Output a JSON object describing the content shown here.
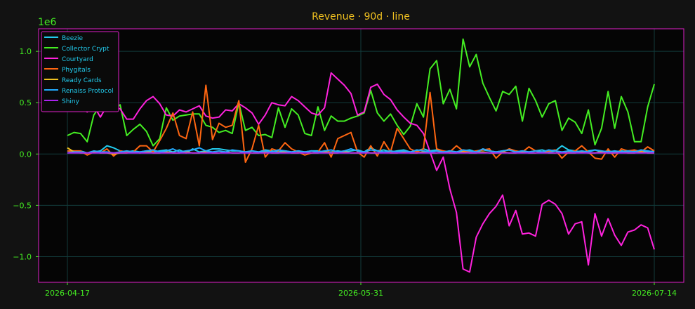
{
  "chart_data": {
    "type": "line",
    "title": "Revenue · 90d · line",
    "offset_label": "1e6",
    "xlabel": "",
    "ylabel": "",
    "x_range": [
      "2026-04-17",
      "2026-07-14"
    ],
    "x_ticks": [
      "2026-04-17",
      "2026-05-31",
      "2026-07-14"
    ],
    "ylim": [
      -1.25,
      1.22
    ],
    "y_ticks": [
      1.0,
      0.5,
      0.0,
      -0.5,
      -1.0
    ],
    "y_tick_labels": [
      "1.0",
      "0.5",
      "0.0",
      "−0.5",
      "−1.0"
    ],
    "grid": true,
    "legend": "top-left",
    "colors": {
      "background": "#121212",
      "plot_background": "#050505",
      "frame": "#e020c8",
      "grid": "#123c3c",
      "tick_text": "#44ee22",
      "title_text": "#f0c020"
    },
    "series": [
      {
        "name": "Beezie",
        "color": "#22ccee",
        "values": [
          0.03,
          0.02,
          0.03,
          0.01,
          0.02,
          0.03,
          0.08,
          0.06,
          0.03,
          0.02,
          0.03,
          0.02,
          0.03,
          0.02,
          0.03,
          0.04,
          0.02,
          0.04,
          0.01,
          0.05,
          0.02,
          0.03,
          0.05,
          0.05,
          0.04,
          0.03,
          0.03,
          0.02,
          0.03,
          0.02,
          0.04,
          0.03,
          0.02,
          0.03,
          0.02,
          0.03,
          0.02,
          0.03,
          0.03,
          0.02,
          0.02,
          0.03,
          0.02,
          0.03,
          0.04,
          0.02,
          0.06,
          0.03,
          0.04,
          0.02,
          0.03,
          0.04,
          0.02,
          0.03,
          0.05,
          0.03,
          0.04,
          0.02,
          0.03,
          0.02,
          0.03,
          0.04,
          0.02,
          0.04,
          0.03,
          0.02,
          0.03,
          0.04,
          0.02,
          0.03,
          0.02,
          0.03,
          0.04,
          0.02,
          0.03,
          0.08,
          0.04,
          0.03,
          0.02,
          0.03,
          0.04,
          0.02,
          0.03,
          0.02,
          0.03,
          0.02,
          0.03,
          0.03,
          0.02,
          0.03
        ]
      },
      {
        "name": "Collector Crypt",
        "color": "#44ee22",
        "values": [
          0.18,
          0.21,
          0.2,
          0.12,
          0.38,
          0.47,
          0.52,
          0.43,
          0.48,
          0.18,
          0.24,
          0.29,
          0.22,
          0.08,
          0.15,
          0.45,
          0.33,
          0.37,
          0.38,
          0.39,
          0.39,
          0.28,
          0.26,
          0.21,
          0.23,
          0.2,
          0.5,
          0.23,
          0.26,
          0.18,
          0.19,
          0.16,
          0.45,
          0.26,
          0.44,
          0.38,
          0.2,
          0.18,
          0.46,
          0.23,
          0.37,
          0.32,
          0.32,
          0.35,
          0.37,
          0.4,
          0.62,
          0.4,
          0.32,
          0.39,
          0.28,
          0.19,
          0.27,
          0.49,
          0.36,
          0.83,
          0.91,
          0.49,
          0.63,
          0.44,
          1.12,
          0.85,
          0.97,
          0.69,
          0.55,
          0.42,
          0.61,
          0.58,
          0.66,
          0.32,
          0.64,
          0.52,
          0.36,
          0.49,
          0.52,
          0.23,
          0.35,
          0.31,
          0.2,
          0.43,
          0.09,
          0.25,
          0.61,
          0.25,
          0.56,
          0.41,
          0.12,
          0.12,
          0.46,
          0.68
        ]
      },
      {
        "name": "Courtyard",
        "color": "#ff22dd",
        "values": [
          0.6,
          0.5,
          0.45,
          0.41,
          0.47,
          0.36,
          0.47,
          0.46,
          0.44,
          0.34,
          0.34,
          0.44,
          0.52,
          0.56,
          0.49,
          0.38,
          0.37,
          0.43,
          0.41,
          0.44,
          0.47,
          0.37,
          0.35,
          0.36,
          0.43,
          0.42,
          0.49,
          0.45,
          0.4,
          0.29,
          0.38,
          0.5,
          0.48,
          0.47,
          0.56,
          0.52,
          0.46,
          0.4,
          0.38,
          0.45,
          0.79,
          0.73,
          0.67,
          0.59,
          0.38,
          0.41,
          0.65,
          0.68,
          0.58,
          0.53,
          0.43,
          0.36,
          0.3,
          0.28,
          0.2,
          0.02,
          -0.16,
          -0.03,
          -0.34,
          -0.57,
          -1.12,
          -1.15,
          -0.81,
          -0.68,
          -0.58,
          -0.51,
          -0.4,
          -0.7,
          -0.55,
          -0.78,
          -0.77,
          -0.8,
          -0.49,
          -0.45,
          -0.49,
          -0.58,
          -0.78,
          -0.68,
          -0.66,
          -1.08,
          -0.58,
          -0.8,
          -0.63,
          -0.79,
          -0.89,
          -0.76,
          -0.74,
          -0.69,
          -0.72,
          -0.93
        ]
      },
      {
        "name": "Phygitals",
        "color": "#ff6611",
        "values": [
          0.03,
          0.03,
          0.03,
          -0.01,
          0.02,
          0.01,
          0.05,
          -0.02,
          0.03,
          0.02,
          0.02,
          0.08,
          0.08,
          0.02,
          0.13,
          0.25,
          0.4,
          0.18,
          0.15,
          0.41,
          0.08,
          0.67,
          0.14,
          0.3,
          0.26,
          0.28,
          0.52,
          -0.08,
          0.05,
          0.28,
          -0.03,
          0.05,
          0.03,
          0.11,
          0.05,
          0.02,
          -0.01,
          0.01,
          0.02,
          0.11,
          -0.03,
          0.15,
          0.18,
          0.21,
          0.02,
          -0.03,
          0.08,
          -0.02,
          0.12,
          0.02,
          0.25,
          0.15,
          0.05,
          0.02,
          0.05,
          0.6,
          0.05,
          0.03,
          0.02,
          0.08,
          0.03,
          0.02,
          0.03,
          0.04,
          0.05,
          -0.04,
          0.02,
          0.05,
          0.03,
          0.02,
          0.07,
          0.03,
          0.02,
          0.03,
          0.04,
          -0.04,
          0.02,
          0.03,
          0.08,
          0.02,
          -0.04,
          -0.05,
          0.05,
          -0.03,
          0.05,
          0.03,
          0.04,
          0.02,
          0.07,
          0.03
        ]
      },
      {
        "name": "Ready Cards",
        "color": "#f0c020",
        "values": [
          0.06,
          0.02,
          0.01,
          0.01,
          0.02,
          0.01,
          0.01,
          0.0,
          0.01,
          0.01,
          0.02,
          0.01,
          0.02,
          0.01,
          0.01,
          0.02,
          0.01,
          0.01,
          0.02,
          0.01,
          0.01,
          0.02,
          0.01,
          0.01,
          0.02,
          0.01,
          0.01,
          0.02,
          0.01,
          0.01,
          0.02,
          0.01,
          0.01,
          0.02,
          0.01,
          0.01,
          0.02,
          0.01,
          0.01,
          0.02,
          0.01,
          0.01,
          0.02,
          0.01,
          0.01,
          0.02,
          0.01,
          0.01,
          0.02,
          0.01,
          0.01,
          0.02,
          0.01,
          0.01,
          0.02,
          0.01,
          0.01,
          0.02,
          0.01,
          0.01,
          0.02,
          0.01,
          0.01,
          0.02,
          0.01,
          0.01,
          0.02,
          0.01,
          0.01,
          0.02,
          0.01,
          0.01,
          0.02,
          0.01,
          0.01,
          0.02,
          0.01,
          0.01,
          0.02,
          0.01,
          0.01,
          0.02,
          0.01,
          0.01,
          0.02,
          0.01,
          0.01,
          0.02,
          0.01,
          0.01
        ]
      },
      {
        "name": "Renaiss Protocol",
        "color": "#22aaff",
        "values": [
          0.01,
          0.02,
          0.02,
          0.01,
          0.03,
          0.02,
          0.02,
          0.01,
          0.02,
          0.03,
          0.02,
          0.02,
          0.03,
          0.04,
          0.02,
          0.03,
          0.05,
          0.02,
          0.03,
          0.04,
          0.06,
          0.03,
          0.02,
          0.03,
          0.02,
          0.04,
          0.03,
          0.02,
          0.03,
          0.02,
          0.03,
          0.02,
          0.04,
          0.03,
          0.02,
          0.03,
          0.02,
          0.03,
          0.02,
          0.03,
          0.04,
          0.02,
          0.03,
          0.05,
          0.03,
          0.02,
          0.04,
          0.03,
          0.02,
          0.03,
          0.02,
          0.03,
          0.02,
          0.04,
          0.03,
          0.02,
          0.03,
          0.02,
          0.03,
          0.02,
          0.04,
          0.03,
          0.02,
          0.05,
          0.03,
          0.02,
          0.03,
          0.04,
          0.02,
          0.03,
          0.02,
          0.03,
          0.02,
          0.04,
          0.03,
          0.02,
          0.03,
          0.02,
          0.03,
          0.02,
          0.04,
          0.03,
          0.02,
          0.03,
          0.02,
          0.03,
          0.02,
          0.04,
          0.03,
          0.02
        ]
      },
      {
        "name": "Shiny",
        "color": "#aa22ee",
        "values": [
          0.01,
          0.01,
          0.01,
          0.01,
          0.01,
          0.01,
          0.01,
          0.01,
          0.01,
          0.01,
          0.01,
          0.01,
          0.01,
          0.01,
          0.01,
          0.01,
          0.01,
          0.01,
          0.01,
          0.01,
          0.01,
          0.01,
          0.01,
          0.01,
          0.01,
          0.01,
          0.01,
          0.01,
          0.01,
          0.01,
          0.01,
          0.01,
          0.01,
          0.01,
          0.01,
          0.01,
          0.01,
          0.01,
          0.01,
          0.01,
          0.01,
          0.01,
          0.01,
          0.01,
          0.01,
          0.01,
          0.01,
          0.01,
          0.01,
          0.01,
          0.01,
          0.01,
          0.01,
          0.01,
          0.01,
          0.01,
          0.01,
          0.01,
          0.01,
          0.01,
          0.01,
          0.01,
          0.01,
          0.01,
          0.01,
          0.01,
          0.01,
          0.01,
          0.01,
          0.01,
          0.01,
          0.01,
          0.01,
          0.01,
          0.01,
          0.01,
          0.01,
          0.01,
          0.01,
          0.01,
          0.01,
          0.01,
          0.01,
          0.01,
          0.01,
          0.01,
          0.01,
          0.01,
          0.01,
          0.01
        ]
      }
    ]
  }
}
